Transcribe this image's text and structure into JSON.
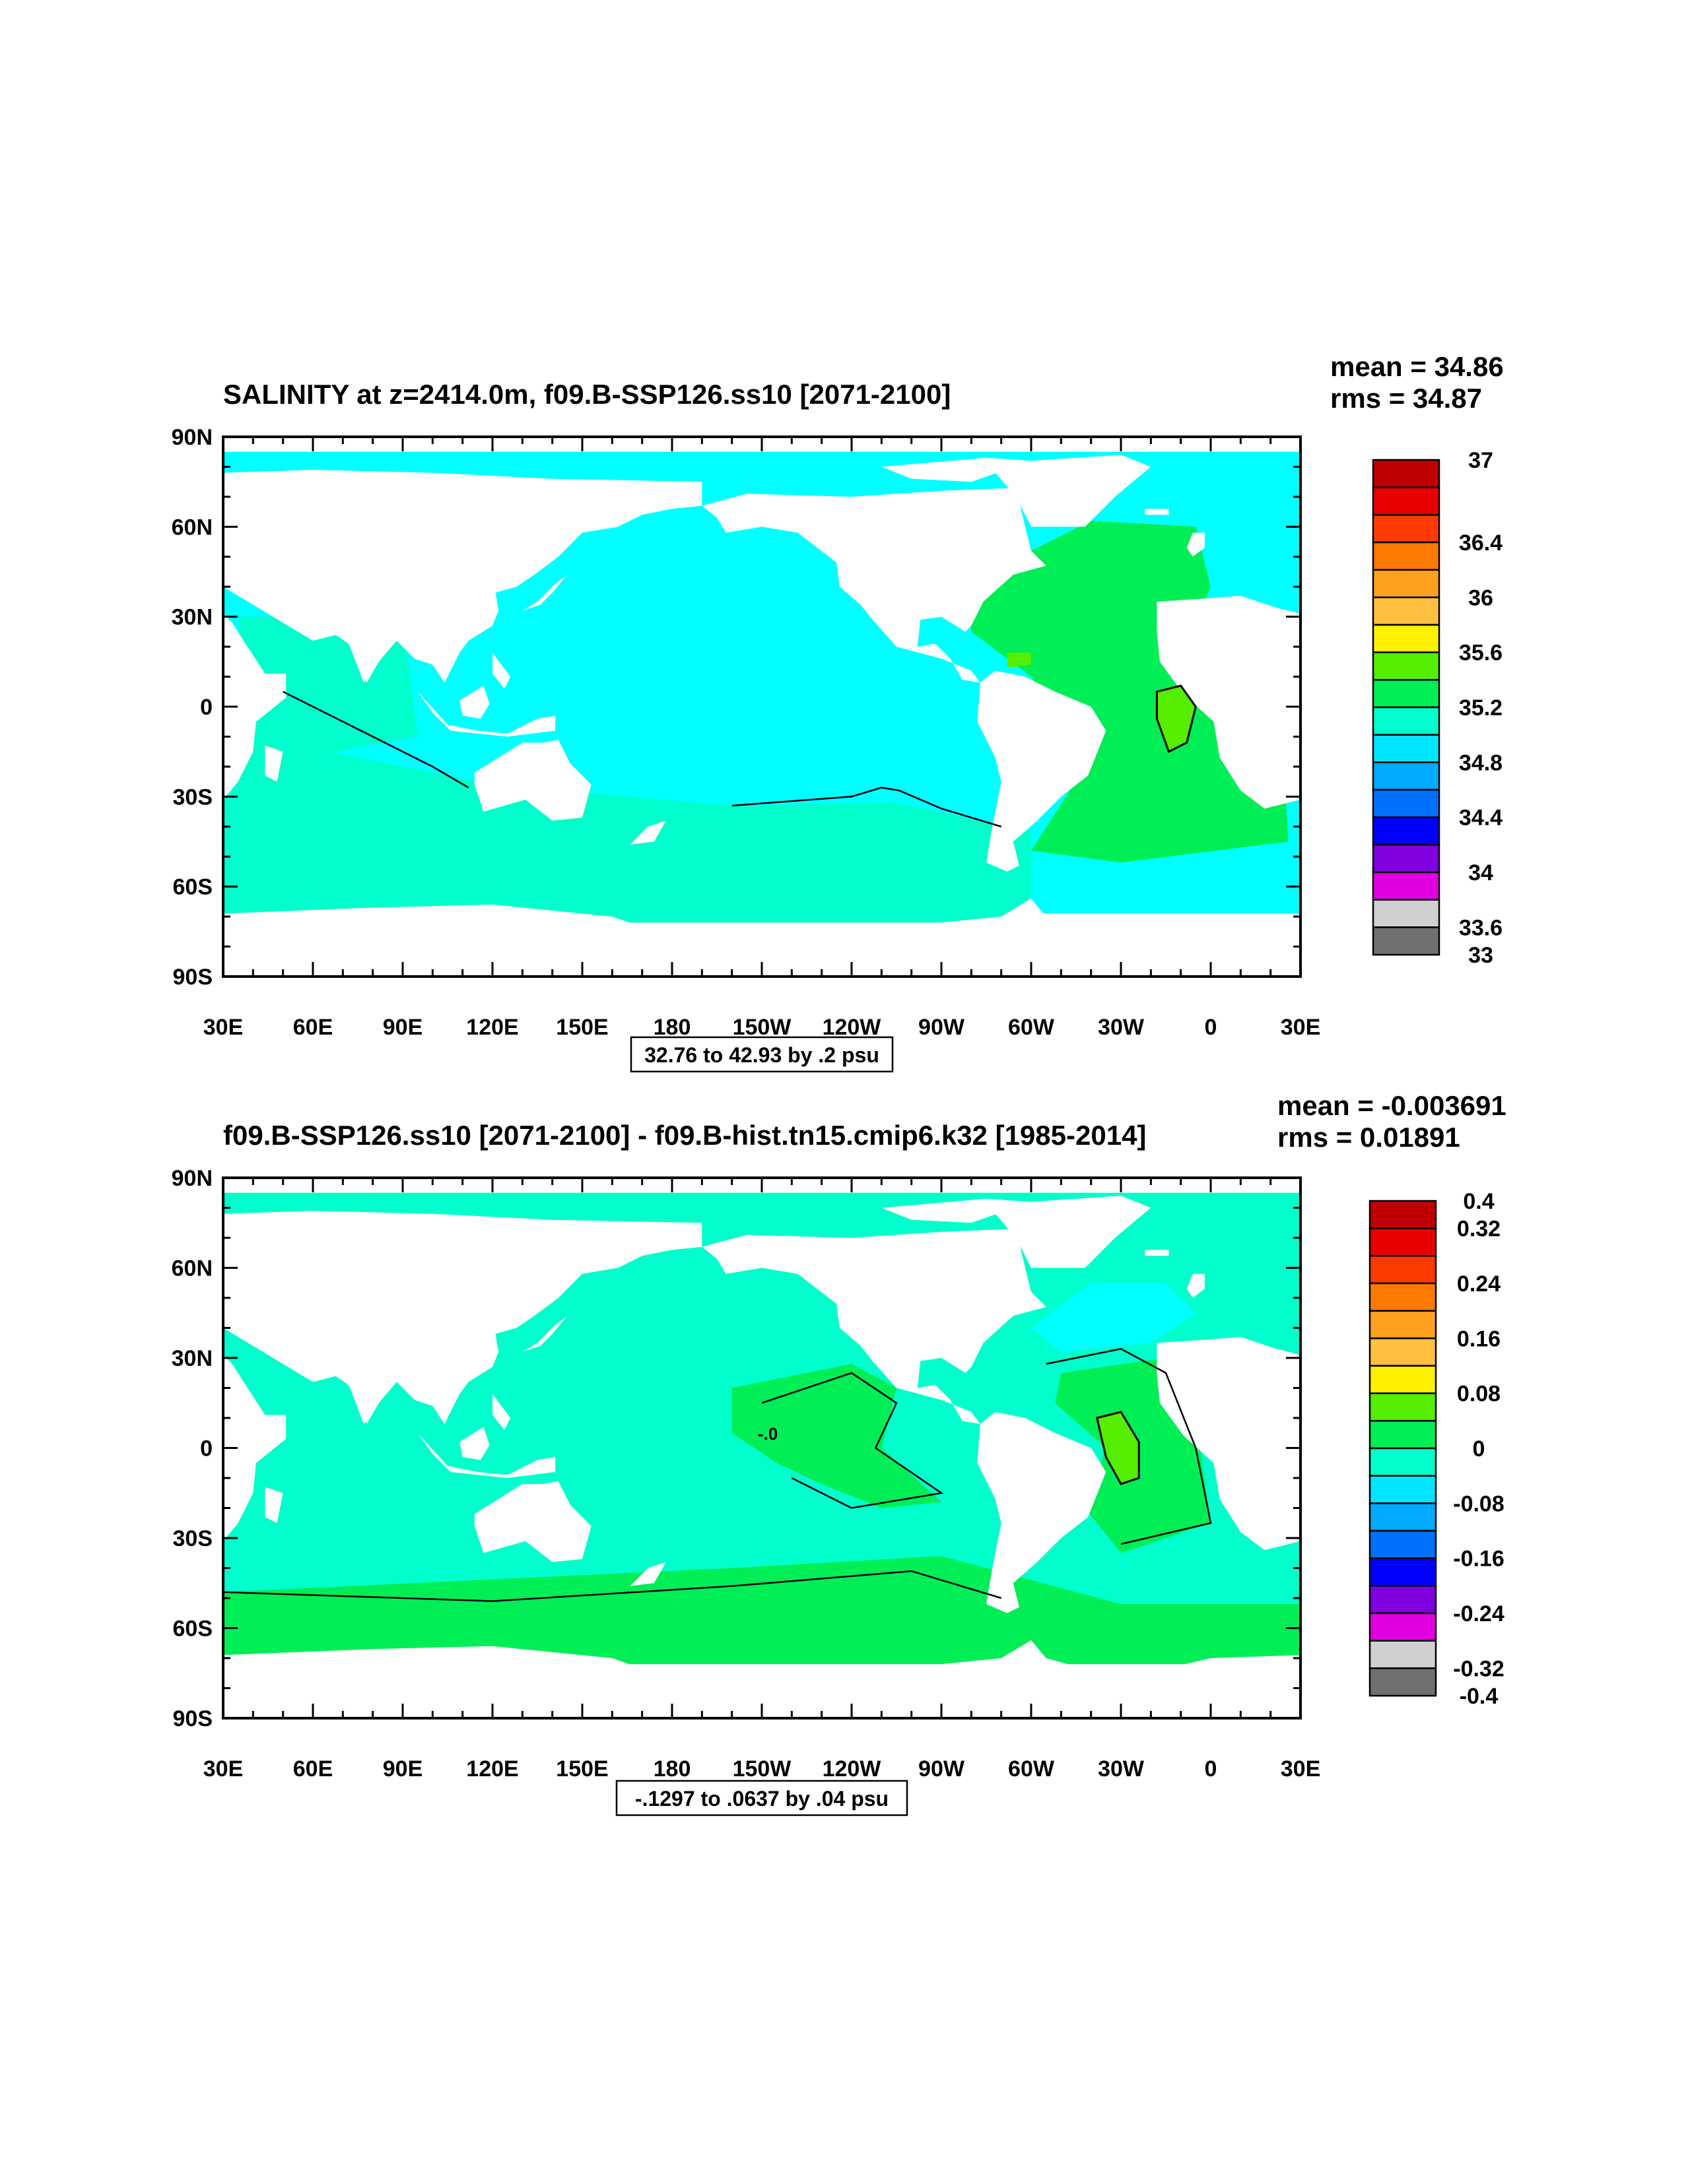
{
  "palette": {
    "ocean_salinity": "#00FFFF",
    "ocean_south": "#00FFCC",
    "ocean_atlantic": "#00EE55",
    "ocean_green": "#00EE55",
    "ocean_lime": "#55EE00",
    "land": "#FFFFFF"
  },
  "chart_data": [
    {
      "type": "filled-contour-map",
      "title": "SALINITY at z=2414.0m, f09.B-SSP126.ss10 [2071-2100]",
      "stats": {
        "mean": "mean = 34.86",
        "rms": "rms = 34.87"
      },
      "x_ticks": [
        "30E",
        "60E",
        "90E",
        "120E",
        "150E",
        "180",
        "150W",
        "120W",
        "90W",
        "60W",
        "30W",
        "0",
        "30E"
      ],
      "y_ticks": [
        "90N",
        "60N",
        "30N",
        "0",
        "30S",
        "60S",
        "90S"
      ],
      "xlim": [
        30,
        390
      ],
      "ylim": [
        -90,
        90
      ],
      "contour_info": "32.76 to 42.93 by .2 psu",
      "colorbar": {
        "colors": [
          "#C00000",
          "#E80000",
          "#FF3A00",
          "#FF7A00",
          "#FFA020",
          "#FFC040",
          "#FFF000",
          "#55EE00",
          "#00EE55",
          "#00FFCC",
          "#00E5FF",
          "#00AAFF",
          "#0070FF",
          "#0000FF",
          "#8000E0",
          "#E000E0",
          "#D0D0D0",
          "#707070"
        ],
        "labels": [
          "37",
          "36.4",
          "36",
          "35.6",
          "35.2",
          "34.8",
          "34.4",
          "34",
          "33.6",
          "33"
        ],
        "label_rows": [
          0,
          2,
          3,
          4,
          5,
          6,
          7,
          8,
          9,
          10
        ]
      }
    },
    {
      "type": "filled-contour-map",
      "title": "f09.B-SSP126.ss10 [2071-2100] - f09.B-hist.tn15.cmip6.k32 [1985-2014]",
      "stats": {
        "mean": "mean = -0.003691",
        "rms": "rms = 0.01891"
      },
      "x_ticks": [
        "30E",
        "60E",
        "90E",
        "120E",
        "150E",
        "180",
        "150W",
        "120W",
        "90W",
        "60W",
        "30W",
        "0",
        "30E"
      ],
      "y_ticks": [
        "90N",
        "60N",
        "30N",
        "0",
        "30S",
        "60S",
        "90S"
      ],
      "xlim": [
        30,
        390
      ],
      "ylim": [
        -90,
        90
      ],
      "contour_info": "-.1297 to .0637 by .04 psu",
      "inline_label": "-.0",
      "colorbar": {
        "colors": [
          "#C00000",
          "#E80000",
          "#FF3A00",
          "#FF7A00",
          "#FFA020",
          "#FFC040",
          "#FFF000",
          "#55EE00",
          "#00EE55",
          "#00FFCC",
          "#00E5FF",
          "#00AAFF",
          "#0070FF",
          "#0000FF",
          "#8000E0",
          "#E000E0",
          "#D0D0D0",
          "#707070"
        ],
        "labels": [
          "0.4",
          "0.32",
          "0.24",
          "0.16",
          "0.08",
          "0",
          "-0.08",
          "-0.16",
          "-0.24",
          "-0.32",
          "-0.4"
        ],
        "label_rows": [
          0,
          1,
          2,
          3,
          4,
          5,
          6,
          7,
          8,
          9,
          10
        ]
      }
    }
  ]
}
